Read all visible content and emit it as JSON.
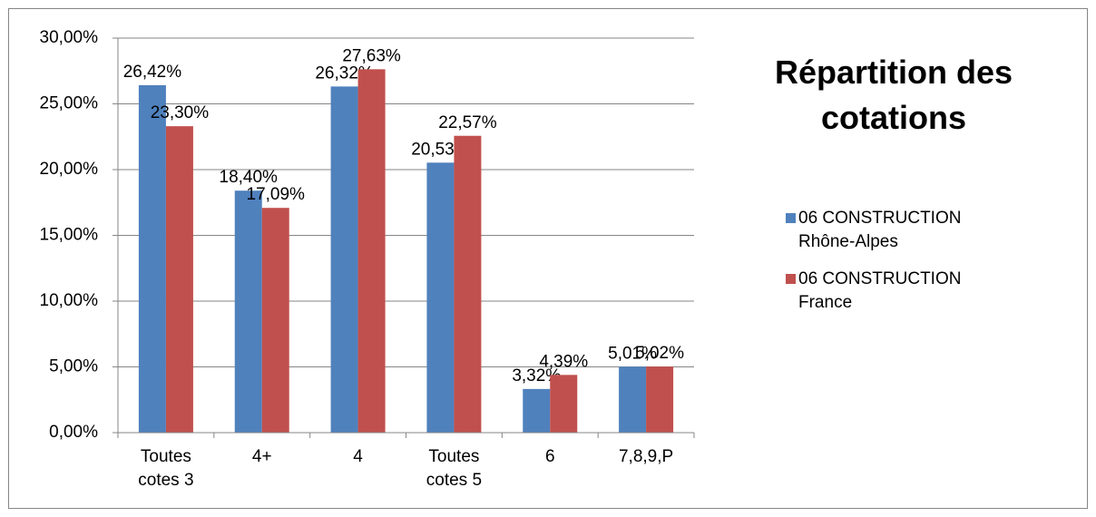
{
  "chart_data": {
    "type": "bar",
    "title": "Répartition des cotations",
    "categories": [
      "Toutes cotes 3",
      "4+",
      "4",
      "Toutes cotes 5",
      "6",
      "7,8,9,P"
    ],
    "series": [
      {
        "name": "06 CONSTRUCTION Rhône-Alpes",
        "color": "#4f81bd",
        "values": [
          26.42,
          18.4,
          26.32,
          20.53,
          3.32,
          5.01
        ],
        "value_labels": [
          "26,42%",
          "18,40%",
          "26,32%",
          "20,53%",
          "3,32%",
          "5,01%"
        ]
      },
      {
        "name": "06 CONSTRUCTION France",
        "color": "#c0504d",
        "values": [
          23.3,
          17.09,
          27.63,
          22.57,
          4.39,
          5.02
        ],
        "value_labels": [
          "23,30%",
          "17,09%",
          "27,63%",
          "22,57%",
          "4,39%",
          "5,02%"
        ]
      }
    ],
    "ylim": [
      0,
      30
    ],
    "yticks": [
      {
        "value": 0,
        "label": "0,00%"
      },
      {
        "value": 5,
        "label": "5,00%"
      },
      {
        "value": 10,
        "label": "10,00%"
      },
      {
        "value": 15,
        "label": "15,00%"
      },
      {
        "value": 20,
        "label": "20,00%"
      },
      {
        "value": 25,
        "label": "25,00%"
      },
      {
        "value": 30,
        "label": "30,00%"
      }
    ],
    "grid": true,
    "legend": "right"
  }
}
